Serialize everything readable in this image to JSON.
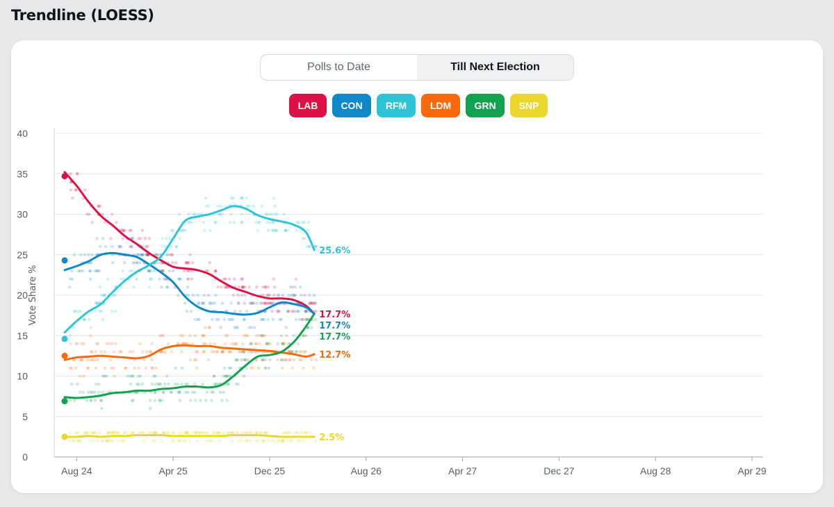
{
  "page": {
    "title": "Trendline (LOESS)"
  },
  "toggle": {
    "options": [
      "Polls to Date",
      "Till Next Election"
    ],
    "active_index": 1
  },
  "parties": [
    {
      "key": "lab",
      "label": "LAB",
      "color": "#dc1145"
    },
    {
      "key": "con",
      "label": "CON",
      "color": "#0f87c8"
    },
    {
      "key": "rfm",
      "label": "RFM",
      "color": "#2ec4d8"
    },
    {
      "key": "ldm",
      "label": "LDM",
      "color": "#fa6a0c"
    },
    {
      "key": "grn",
      "label": "GRN",
      "color": "#12a150"
    },
    {
      "key": "snp",
      "label": "SNP",
      "color": "#ead72d"
    }
  ],
  "chart_data": {
    "type": "line",
    "title": "Trendline (LOESS)",
    "ylabel": "Vote Share %",
    "xlabel": "",
    "ylim": [
      0,
      40
    ],
    "xlim": [
      0,
      57
    ],
    "x_unit": "months since Jul 2024",
    "yticks": [
      0,
      5,
      10,
      15,
      20,
      25,
      30,
      35,
      40
    ],
    "xticks": [
      {
        "value": 1,
        "label": "Aug 24"
      },
      {
        "value": 9,
        "label": "Apr 25"
      },
      {
        "value": 17,
        "label": "Dec 25"
      },
      {
        "value": 25,
        "label": "Aug 26"
      },
      {
        "value": 33,
        "label": "Apr 27"
      },
      {
        "value": 41,
        "label": "Dec 27"
      },
      {
        "value": 49,
        "label": "Aug 28"
      },
      {
        "value": 57,
        "label": "Apr 29"
      }
    ],
    "grid": true,
    "series": [
      {
        "name": "LAB",
        "color": "#dc1145",
        "election_point": [
          0,
          34.7
        ],
        "end_label": "17.7%",
        "end_value": 17.7,
        "x": [
          0,
          1,
          2,
          3,
          4,
          5,
          6,
          7,
          8,
          9,
          10,
          11,
          12,
          13,
          14,
          15,
          16,
          17,
          18,
          19,
          20,
          20.7
        ],
        "y": [
          35.2,
          33.5,
          31.5,
          29.8,
          28.6,
          27.3,
          26.3,
          25.2,
          24.3,
          23.5,
          23.3,
          23.1,
          22.6,
          21.7,
          20.9,
          20.4,
          19.9,
          19.6,
          19.6,
          19.4,
          18.7,
          17.7
        ]
      },
      {
        "name": "CON",
        "color": "#0f87c8",
        "election_point": [
          0,
          24.3
        ],
        "end_label": "17.7%",
        "end_value": 17.7,
        "x": [
          0,
          1,
          2,
          3,
          4,
          5,
          6,
          7,
          8,
          9,
          10,
          11,
          12,
          13,
          14,
          15,
          16,
          17,
          18,
          19,
          20,
          20.7
        ],
        "y": [
          23.1,
          23.6,
          24.2,
          25.0,
          25.2,
          25.0,
          24.7,
          23.8,
          22.8,
          21.6,
          19.8,
          18.6,
          18.0,
          17.9,
          17.7,
          17.6,
          17.8,
          18.5,
          19.1,
          18.9,
          18.5,
          17.7
        ]
      },
      {
        "name": "RFM",
        "color": "#2ec4d8",
        "election_point": [
          0,
          14.6
        ],
        "end_label": "25.6%",
        "end_value": 25.6,
        "x": [
          0,
          1,
          2,
          3,
          4,
          5,
          6,
          7,
          8,
          9,
          10,
          11,
          12,
          13,
          14,
          15,
          16,
          17,
          18,
          19,
          20,
          20.7
        ],
        "y": [
          15.4,
          16.8,
          18.0,
          18.9,
          20.4,
          21.8,
          22.9,
          23.7,
          24.8,
          27.0,
          29.2,
          29.7,
          30.0,
          30.5,
          31.0,
          30.7,
          29.9,
          29.4,
          29.1,
          28.7,
          27.8,
          25.6
        ]
      },
      {
        "name": "LDM",
        "color": "#fa6a0c",
        "election_point": [
          0,
          12.5
        ],
        "end_label": "12.7%",
        "end_value": 12.7,
        "x": [
          0,
          1,
          2,
          3,
          4,
          5,
          6,
          7,
          8,
          9,
          10,
          11,
          12,
          13,
          14,
          15,
          16,
          17,
          18,
          19,
          20,
          20.7
        ],
        "y": [
          12.0,
          12.3,
          12.4,
          12.5,
          12.4,
          12.3,
          12.2,
          12.5,
          13.3,
          13.7,
          13.8,
          13.7,
          13.7,
          13.5,
          13.4,
          13.3,
          13.2,
          13.1,
          12.9,
          12.7,
          12.4,
          12.7
        ]
      },
      {
        "name": "GRN",
        "color": "#12a150",
        "election_point": [
          0,
          6.9
        ],
        "end_label": "17.7%",
        "end_value": 17.7,
        "x": [
          0,
          1,
          2,
          3,
          4,
          5,
          6,
          7,
          8,
          9,
          10,
          11,
          12,
          13,
          14,
          15,
          16,
          17,
          18,
          19,
          20,
          20.7
        ],
        "y": [
          7.4,
          7.3,
          7.4,
          7.6,
          7.9,
          8.0,
          8.2,
          8.2,
          8.4,
          8.5,
          8.7,
          8.7,
          8.6,
          8.9,
          10.0,
          11.3,
          12.4,
          12.6,
          13.0,
          14.2,
          16.1,
          17.7
        ]
      },
      {
        "name": "SNP",
        "color": "#ead72d",
        "election_point": [
          0,
          2.5
        ],
        "end_label": "2.5%",
        "end_value": 2.5,
        "x": [
          0,
          1,
          2,
          3,
          4,
          5,
          6,
          7,
          8,
          9,
          10,
          11,
          12,
          13,
          14,
          15,
          16,
          17,
          18,
          19,
          20,
          20.7
        ],
        "y": [
          2.5,
          2.5,
          2.6,
          2.5,
          2.6,
          2.6,
          2.7,
          2.7,
          2.7,
          2.6,
          2.6,
          2.6,
          2.6,
          2.6,
          2.7,
          2.7,
          2.7,
          2.6,
          2.5,
          2.5,
          2.5,
          2.5
        ]
      }
    ]
  }
}
